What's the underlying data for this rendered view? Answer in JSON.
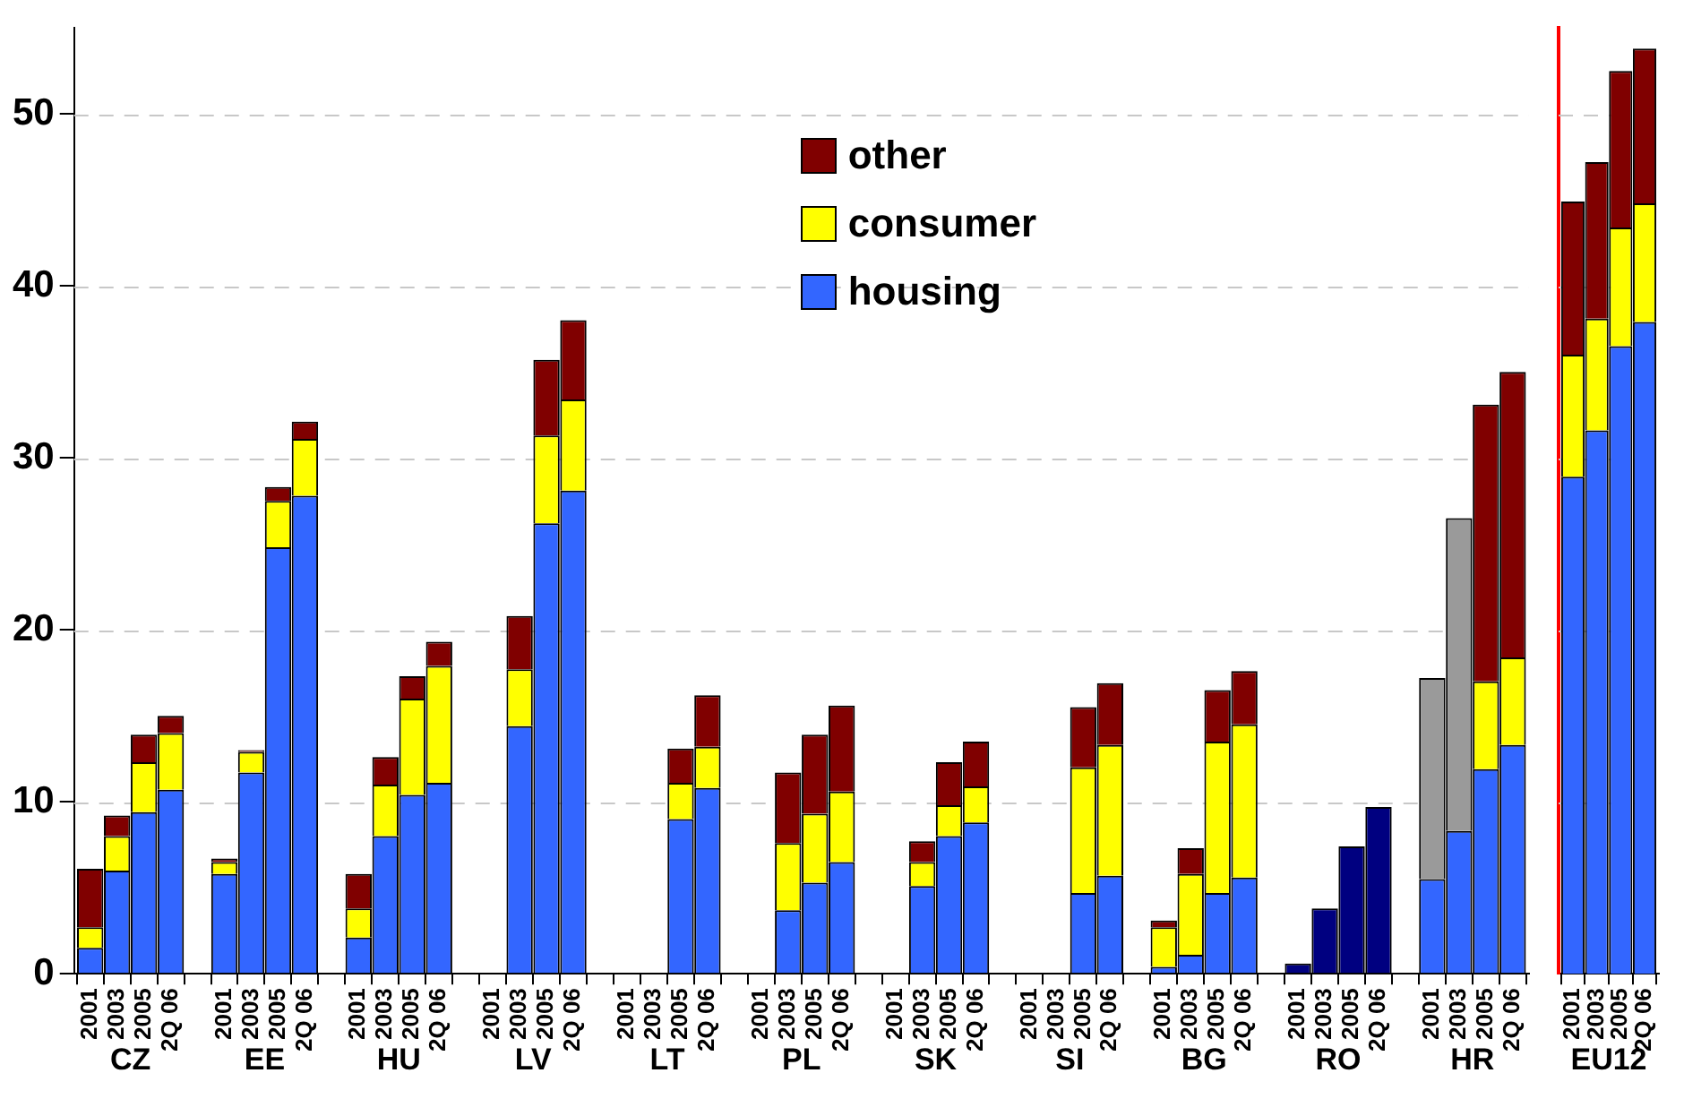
{
  "chart_data": [
    {
      "type": "bar",
      "stacked": true,
      "categories": [
        "2001",
        "2003",
        "2005",
        "2Q 06",
        null,
        "2001",
        "2003",
        "2005",
        "2Q 06",
        null,
        "2001",
        "2003",
        "2005",
        "2Q 06",
        null,
        "2001",
        "2003",
        "2005",
        "2Q 06",
        null,
        "2001",
        "2003",
        "2005",
        "2Q 06",
        null,
        "2001",
        "2003",
        "2005",
        "2Q 06",
        null,
        "2001",
        "2003",
        "2005",
        "2Q 06",
        null,
        "2001",
        "2003",
        "2005",
        "2Q 06",
        null,
        "2001",
        "2003",
        "2005",
        "2Q 06",
        null,
        "2001",
        "2003",
        "2005",
        "2Q 06",
        null,
        "2001",
        "2003",
        "2005",
        "2Q 06"
      ],
      "annotations": [
        "CZ",
        "EE",
        "HU",
        "LV",
        "LT",
        "PL",
        "SK",
        "SI",
        "BG",
        "RO",
        "HR"
      ],
      "series": [
        {
          "name": "housing",
          "color": "#3366ff",
          "values": [
            1.5,
            6.0,
            9.4,
            10.7,
            null,
            5.8,
            11.7,
            24.8,
            27.8,
            null,
            2.1,
            8.0,
            10.4,
            11.1,
            null,
            null,
            14.4,
            26.2,
            28.1,
            null,
            null,
            null,
            9.0,
            10.8,
            null,
            null,
            3.7,
            5.3,
            6.5,
            null,
            null,
            5.1,
            8.0,
            8.8,
            null,
            null,
            null,
            4.7,
            5.7,
            null,
            0.4,
            1.1,
            4.7,
            5.6,
            null,
            null,
            null,
            null,
            null,
            null,
            5.5,
            8.3,
            11.9,
            13.3
          ]
        },
        {
          "name": "consumer",
          "color": "#ffff00",
          "values": [
            1.2,
            2.0,
            2.9,
            3.3,
            null,
            0.7,
            1.2,
            2.7,
            3.3,
            null,
            1.7,
            3.0,
            5.6,
            6.8,
            null,
            null,
            3.3,
            5.1,
            5.3,
            null,
            null,
            null,
            2.1,
            2.4,
            null,
            null,
            3.9,
            4.0,
            4.1,
            null,
            null,
            1.4,
            1.8,
            2.1,
            null,
            null,
            null,
            7.3,
            7.6,
            null,
            2.3,
            4.7,
            8.8,
            8.9,
            null,
            null,
            null,
            null,
            null,
            null,
            null,
            null,
            5.1,
            5.1
          ]
        },
        {
          "name": "other",
          "color": "#800000",
          "values": [
            3.4,
            1.2,
            1.6,
            1.0,
            null,
            0.2,
            0.1,
            0.8,
            1.0,
            null,
            2.0,
            1.6,
            1.3,
            1.4,
            null,
            null,
            3.1,
            4.4,
            4.6,
            null,
            null,
            null,
            2.0,
            3.0,
            null,
            null,
            4.1,
            4.6,
            5.0,
            null,
            null,
            1.2,
            2.5,
            2.6,
            null,
            null,
            null,
            3.5,
            3.6,
            null,
            0.4,
            1.5,
            3.0,
            3.1,
            null,
            null,
            null,
            null,
            null,
            null,
            null,
            null,
            16.1,
            16.6
          ]
        },
        {
          "color": "#000080",
          "values": [
            null,
            null,
            null,
            null,
            null,
            null,
            null,
            null,
            null,
            null,
            null,
            null,
            null,
            null,
            null,
            null,
            null,
            null,
            null,
            null,
            null,
            null,
            null,
            null,
            null,
            null,
            null,
            null,
            null,
            null,
            null,
            null,
            null,
            null,
            null,
            null,
            null,
            null,
            null,
            null,
            null,
            null,
            null,
            null,
            null,
            0.6,
            3.8,
            7.4,
            9.7,
            null,
            null,
            null,
            null,
            null
          ]
        },
        {
          "color": "#9a9a9a",
          "values": [
            null,
            null,
            null,
            null,
            null,
            null,
            null,
            null,
            null,
            null,
            null,
            null,
            null,
            null,
            null,
            null,
            null,
            null,
            null,
            null,
            null,
            null,
            null,
            null,
            null,
            null,
            null,
            null,
            null,
            null,
            null,
            null,
            null,
            null,
            null,
            null,
            null,
            null,
            null,
            null,
            null,
            null,
            null,
            null,
            null,
            null,
            null,
            null,
            null,
            null,
            11.7,
            18.2,
            null,
            null
          ]
        }
      ],
      "ylim": [
        0,
        55
      ],
      "yticks": [
        0,
        10,
        20,
        30,
        40,
        50
      ],
      "grid": "y",
      "legend": "top"
    },
    {
      "type": "bar",
      "stacked": true,
      "categories": [
        "2001",
        "2003",
        "2005",
        "2Q 06"
      ],
      "annotations": [
        "EU12"
      ],
      "series": [
        {
          "color": "#3366ff",
          "values": [
            28.9,
            31.6,
            36.5,
            37.9
          ]
        },
        {
          "color": "#ffff00",
          "values": [
            7.1,
            6.5,
            6.9,
            6.9
          ]
        },
        {
          "color": "#800000",
          "values": [
            8.9,
            9.1,
            9.1,
            9.0
          ]
        }
      ],
      "ylim": [
        0,
        55
      ],
      "yticks": [
        0,
        10,
        20,
        30,
        40,
        50
      ],
      "grid": "y",
      "tick_labels": "x"
    }
  ]
}
